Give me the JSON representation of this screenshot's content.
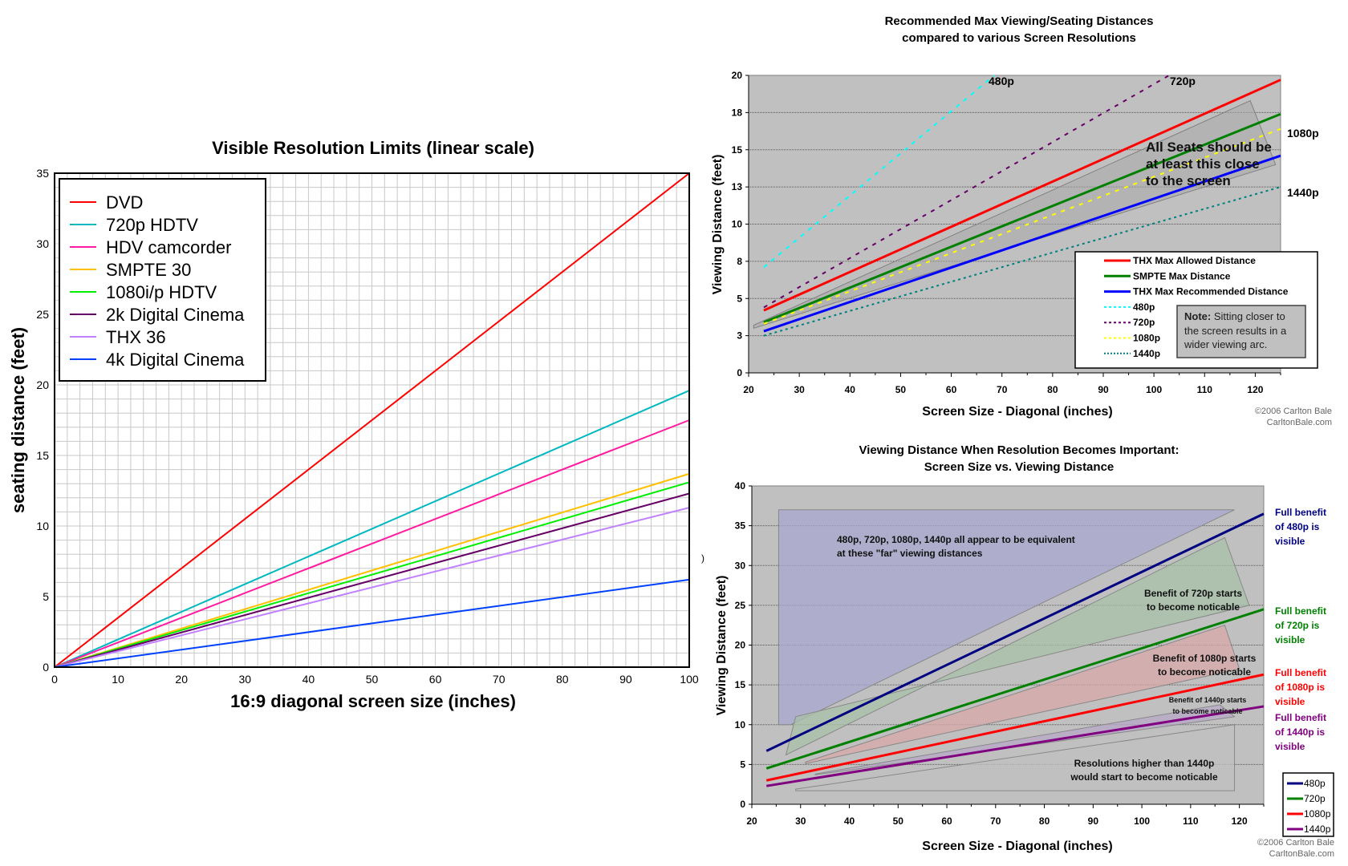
{
  "chart_data": [
    {
      "id": "left",
      "type": "line",
      "title": "Visible Resolution Limits (linear scale)",
      "xlabel": "16:9 diagonal screen size (inches)",
      "ylabel": "seating distance (feet)",
      "xlim": [
        0,
        100
      ],
      "ylim": [
        0,
        35
      ],
      "xticks": [
        "0",
        "10",
        "20",
        "30",
        "40",
        "50",
        "60",
        "70",
        "80",
        "90",
        "100"
      ],
      "yticks": [
        "0",
        "5",
        "10",
        "15",
        "20",
        "25",
        "30",
        "35"
      ],
      "grid": true,
      "legend_position": "top-left",
      "series": [
        {
          "name": "DVD",
          "color": "#ff0000",
          "x": [
            0,
            100
          ],
          "y": [
            0,
            35.0
          ]
        },
        {
          "name": "720p HDTV",
          "color": "#00b8c0",
          "x": [
            0,
            100
          ],
          "y": [
            0,
            19.6
          ]
        },
        {
          "name": "HDV camcorder",
          "color": "#ff1aa0",
          "x": [
            0,
            100
          ],
          "y": [
            0,
            17.5
          ]
        },
        {
          "name": "SMPTE 30",
          "color": "#ffc000",
          "x": [
            0,
            100
          ],
          "y": [
            0,
            13.7
          ]
        },
        {
          "name": "1080i/p HDTV",
          "color": "#00ee00",
          "x": [
            0,
            100
          ],
          "y": [
            0,
            13.1
          ]
        },
        {
          "name": "2k Digital Cinema",
          "color": "#660066",
          "x": [
            0,
            100
          ],
          "y": [
            0,
            12.3
          ]
        },
        {
          "name": "THX 36",
          "color": "#c080ff",
          "x": [
            0,
            100
          ],
          "y": [
            0,
            11.3
          ]
        },
        {
          "name": "4k Digital Cinema",
          "color": "#0040ff",
          "x": [
            0,
            100
          ],
          "y": [
            0,
            6.2
          ]
        }
      ]
    },
    {
      "id": "topright",
      "type": "line",
      "title_lines": [
        "Recommended Max Viewing/Seating Distances",
        "compared to various Screen Resolutions"
      ],
      "xlabel": "Screen Size - Diagonal (inches)",
      "ylabel": "Viewing Distance (feet)",
      "xlim": [
        20,
        125
      ],
      "ylim": [
        0,
        20
      ],
      "xticks": [
        "20",
        "30",
        "40",
        "50",
        "60",
        "70",
        "80",
        "90",
        "100",
        "110",
        "120"
      ],
      "yticks": [
        {
          "value": 0,
          "label": "0"
        },
        {
          "value": 2.5,
          "label": "3"
        },
        {
          "value": 5,
          "label": "5"
        },
        {
          "value": 7.5,
          "label": "8"
        },
        {
          "value": 10,
          "label": "10"
        },
        {
          "value": 12.5,
          "label": "13"
        },
        {
          "value": 15,
          "label": "15"
        },
        {
          "value": 17.5,
          "label": "18"
        },
        {
          "value": 20,
          "label": "20"
        }
      ],
      "legend_position": "bottom-right",
      "series": [
        {
          "name": "THX Max Allowed Distance",
          "color": "#ff0000",
          "style": "solid",
          "x": [
            23,
            125
          ],
          "y": [
            4.2,
            19.7
          ]
        },
        {
          "name": "SMPTE Max Distance",
          "color": "#008000",
          "style": "solid",
          "x": [
            23,
            125
          ],
          "y": [
            3.4,
            17.4
          ]
        },
        {
          "name": "THX Max Recommended Distance",
          "color": "#0000ff",
          "style": "solid",
          "x": [
            23,
            125
          ],
          "y": [
            2.8,
            14.6
          ]
        },
        {
          "name": "480p",
          "color": "#00ffff",
          "style": "dash",
          "x": [
            23,
            68.5
          ],
          "y": [
            7.1,
            20
          ]
        },
        {
          "name": "720p",
          "color": "#660066",
          "style": "dash",
          "x": [
            23,
            103
          ],
          "y": [
            4.4,
            20
          ]
        },
        {
          "name": "1080p",
          "color": "#ffff00",
          "style": "dash",
          "x": [
            23,
            125
          ],
          "y": [
            3.3,
            16.4
          ]
        },
        {
          "name": "1440p",
          "color": "#008080",
          "style": "dot",
          "x": [
            23,
            125
          ],
          "y": [
            2.5,
            12.5
          ]
        }
      ],
      "line_labels": [
        "480p",
        "720p",
        "1080p",
        "1440p"
      ],
      "annotation": [
        "All Seats should be",
        "at least this close",
        "to the screen"
      ],
      "note_bold": "Note:",
      "note_lines": [
        " Sitting closer to",
        "the screen results in a",
        "wider viewing arc."
      ],
      "credit": [
        "©2006 Carlton Bale",
        "CarltonBale.com"
      ]
    },
    {
      "id": "bottomright",
      "type": "line",
      "title_lines": [
        "Viewing Distance When Resolution Becomes Important:",
        "Screen Size vs. Viewing Distance"
      ],
      "xlabel": "Screen Size - Diagonal (inches)",
      "ylabel": "Viewing Distance (feet)",
      "xlim": [
        20,
        125
      ],
      "ylim": [
        0,
        40
      ],
      "xticks": [
        "20",
        "30",
        "40",
        "50",
        "60",
        "70",
        "80",
        "90",
        "100",
        "110",
        "120"
      ],
      "yticks": [
        "0",
        "5",
        "10",
        "15",
        "20",
        "25",
        "30",
        "35",
        "40"
      ],
      "legend_position": "bottom-right",
      "series": [
        {
          "name": "480p",
          "color": "#000080",
          "x": [
            23,
            125
          ],
          "y": [
            6.7,
            36.5
          ]
        },
        {
          "name": "720p",
          "color": "#008000",
          "x": [
            23,
            125
          ],
          "y": [
            4.5,
            24.5
          ]
        },
        {
          "name": "1080p",
          "color": "#ff0000",
          "x": [
            23,
            125
          ],
          "y": [
            3.0,
            16.3
          ]
        },
        {
          "name": "1440p",
          "color": "#800080",
          "x": [
            23,
            125
          ],
          "y": [
            2.3,
            12.3
          ]
        }
      ],
      "regions": [
        {
          "name": "far",
          "lines": [
            "480p, 720p, 1080p, 1440p all appear to be equivalent",
            "at these \"far\" viewing distances"
          ]
        },
        {
          "name": "720p-region",
          "lines": [
            "Benefit of 720p starts",
            "to become noticable"
          ]
        },
        {
          "name": "1080p-region",
          "lines": [
            "Benefit of 1080p starts",
            "to become noticable"
          ]
        },
        {
          "name": "1440p-region",
          "lines": [
            "Benefit of 1440p starts",
            "to become noticable"
          ]
        },
        {
          "name": "higher-region",
          "lines": [
            "Resolutions higher than 1440p",
            "would start to become noticable"
          ]
        }
      ],
      "side_labels": [
        {
          "color": "#000080",
          "lines": [
            "Full benefit",
            "of 480p is",
            "visible"
          ]
        },
        {
          "color": "#008000",
          "lines": [
            "Full benefit",
            "of 720p is",
            "visible"
          ]
        },
        {
          "color": "#ff0000",
          "lines": [
            "Full benefit",
            "of 1080p is",
            "visible"
          ]
        },
        {
          "color": "#800080",
          "lines": [
            "Full benefit",
            "of 1440p is",
            "visible"
          ]
        }
      ],
      "credit": [
        "©2006 Carlton Bale",
        "CarltonBale.com"
      ]
    }
  ],
  "stray_mark": ")"
}
